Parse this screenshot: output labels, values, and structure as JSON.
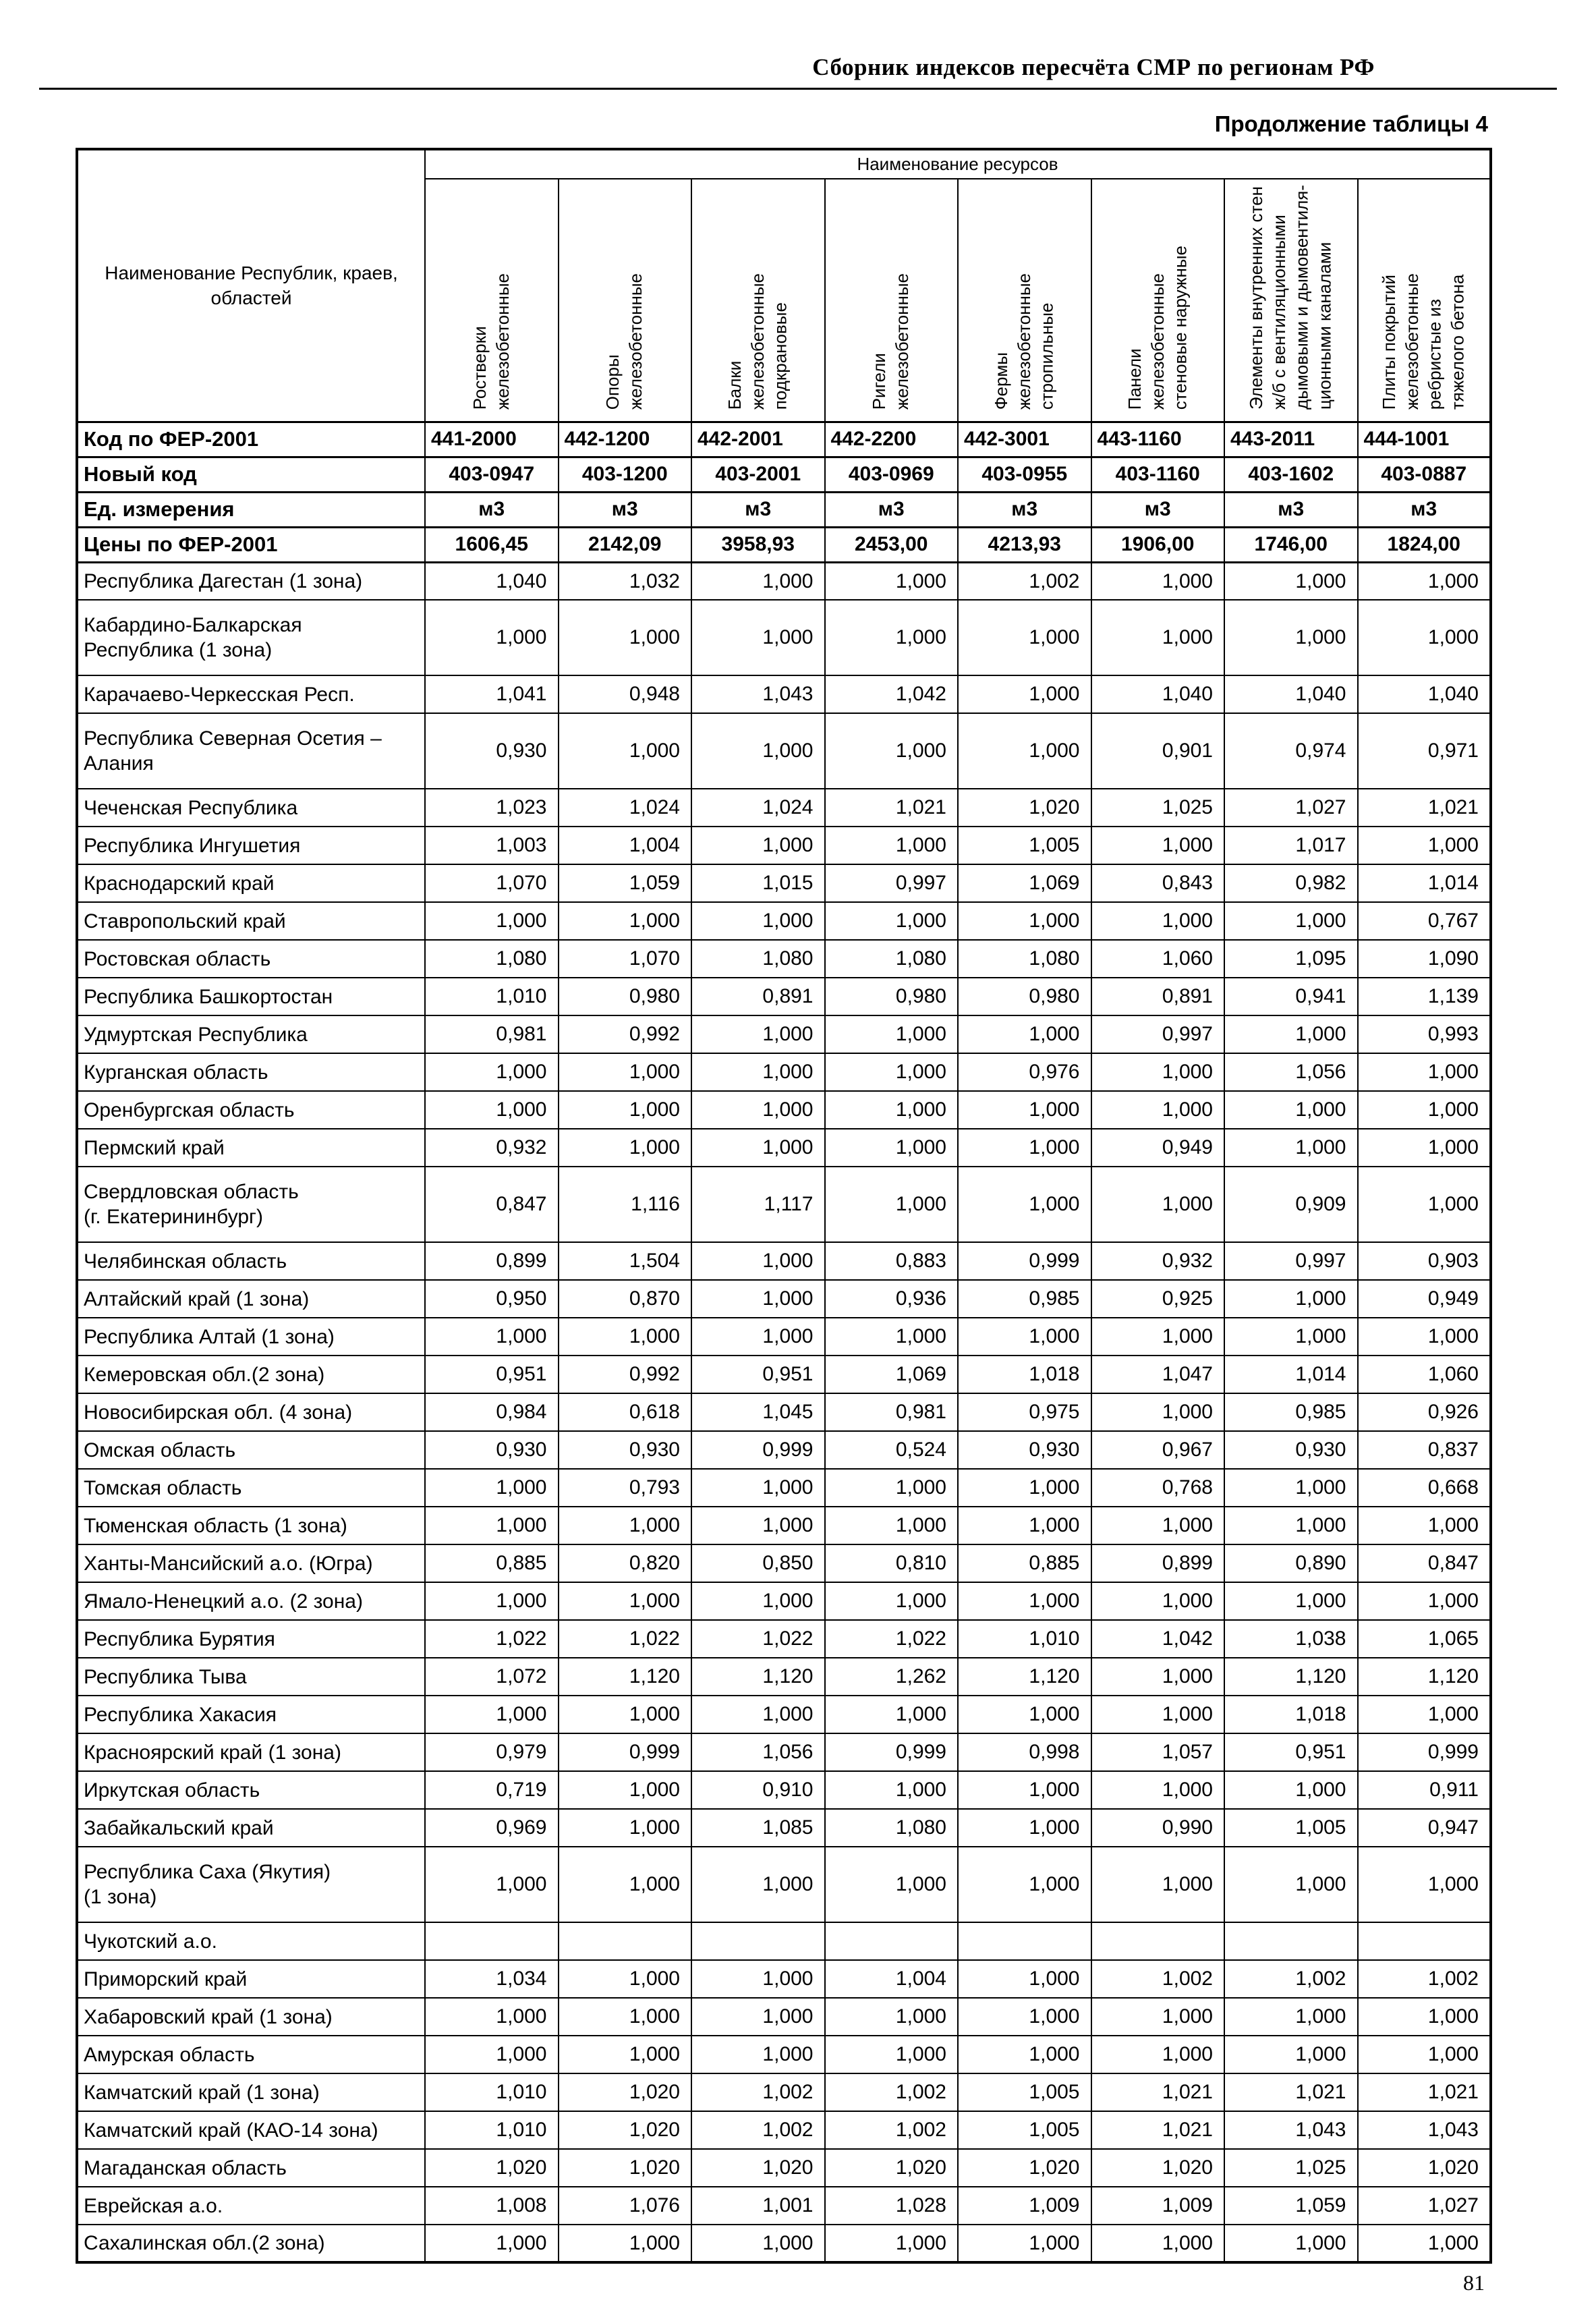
{
  "page": {
    "doc_header": "Сборник индексов пересчёта СМР по регионам РФ",
    "table_caption": "Продолжение таблицы 4",
    "page_number": "81",
    "colors": {
      "ink": "#000000",
      "paper": "#ffffff"
    }
  },
  "table": {
    "resources_header": "Наименование ресурсов",
    "first_column_header": "Наименование Республик, краев,\nобластей",
    "column_headers": [
      "Ростверки\nжелезобетонные",
      "Опоры\nжелезобетонные",
      "Балки\nжелезобетонные\nподкрановые",
      "Ригели\nжелезобетонные",
      "Фермы\nжелезобетонные\nстропильные",
      "Панели\nжелезобетонные\nстеновые наружные",
      "Элементы внутренних стен\nж/б с вентиляционными\nдымовыми и дымовентиля-\nционными каналами",
      "Плиты покрытий\nжелезобетонные\nребристые из\nтяжелого бетона"
    ],
    "meta_rows": [
      {
        "label": "Код по ФЕР-2001",
        "values": [
          "441-2000",
          "442-1200",
          "442-2001",
          "442-2200",
          "442-3001",
          "443-1160",
          "443-2011",
          "444-1001"
        ]
      },
      {
        "label": "Новый код",
        "values": [
          "403-0947",
          "403-1200",
          "403-2001",
          "403-0969",
          "403-0955",
          "403-1160",
          "403-1602",
          "403-0887"
        ]
      },
      {
        "label": "Ед. измерения",
        "values": [
          "м3",
          "м3",
          "м3",
          "м3",
          "м3",
          "м3",
          "м3",
          "м3"
        ]
      },
      {
        "label": "Цены по ФЕР-2001",
        "values": [
          "1606,45",
          "2142,09",
          "3958,93",
          "2453,00",
          "4213,93",
          "1906,00",
          "1746,00",
          "1824,00"
        ]
      }
    ],
    "rows": [
      {
        "label": "Республика Дагестан (1 зона)",
        "values": [
          "1,040",
          "1,032",
          "1,000",
          "1,000",
          "1,002",
          "1,000",
          "1,000",
          "1,000"
        ]
      },
      {
        "label": "Кабардино-Балкарская\nРеспублика (1 зона)",
        "values": [
          "1,000",
          "1,000",
          "1,000",
          "1,000",
          "1,000",
          "1,000",
          "1,000",
          "1,000"
        ]
      },
      {
        "label": "Карачаево-Черкесская Респ.",
        "values": [
          "1,041",
          "0,948",
          "1,043",
          "1,042",
          "1,000",
          "1,040",
          "1,040",
          "1,040"
        ]
      },
      {
        "label": "Республика Северная Осетия –\nАлания",
        "values": [
          "0,930",
          "1,000",
          "1,000",
          "1,000",
          "1,000",
          "0,901",
          "0,974",
          "0,971"
        ]
      },
      {
        "label": "Чеченская Республика",
        "values": [
          "1,023",
          "1,024",
          "1,024",
          "1,021",
          "1,020",
          "1,025",
          "1,027",
          "1,021"
        ]
      },
      {
        "label": "Республика Ингушетия",
        "values": [
          "1,003",
          "1,004",
          "1,000",
          "1,000",
          "1,005",
          "1,000",
          "1,017",
          "1,000"
        ]
      },
      {
        "label": "Краснодарский край",
        "values": [
          "1,070",
          "1,059",
          "1,015",
          "0,997",
          "1,069",
          "0,843",
          "0,982",
          "1,014"
        ]
      },
      {
        "label": "Ставропольский край",
        "values": [
          "1,000",
          "1,000",
          "1,000",
          "1,000",
          "1,000",
          "1,000",
          "1,000",
          "0,767"
        ]
      },
      {
        "label": "Ростовская область",
        "values": [
          "1,080",
          "1,070",
          "1,080",
          "1,080",
          "1,080",
          "1,060",
          "1,095",
          "1,090"
        ]
      },
      {
        "label": "Республика Башкортостан",
        "values": [
          "1,010",
          "0,980",
          "0,891",
          "0,980",
          "0,980",
          "0,891",
          "0,941",
          "1,139"
        ]
      },
      {
        "label": "Удмуртская Республика",
        "values": [
          "0,981",
          "0,992",
          "1,000",
          "1,000",
          "1,000",
          "0,997",
          "1,000",
          "0,993"
        ]
      },
      {
        "label": "Курганская область",
        "values": [
          "1,000",
          "1,000",
          "1,000",
          "1,000",
          "0,976",
          "1,000",
          "1,056",
          "1,000"
        ]
      },
      {
        "label": "Оренбургская область",
        "values": [
          "1,000",
          "1,000",
          "1,000",
          "1,000",
          "1,000",
          "1,000",
          "1,000",
          "1,000"
        ]
      },
      {
        "label": "Пермский край",
        "values": [
          "0,932",
          "1,000",
          "1,000",
          "1,000",
          "1,000",
          "0,949",
          "1,000",
          "1,000"
        ]
      },
      {
        "label": "Свердловская область\n(г. Екатерининбург)",
        "values": [
          "0,847",
          "1,116",
          "1,117",
          "1,000",
          "1,000",
          "1,000",
          "0,909",
          "1,000"
        ]
      },
      {
        "label": "Челябинская область",
        "values": [
          "0,899",
          "1,504",
          "1,000",
          "0,883",
          "0,999",
          "0,932",
          "0,997",
          "0,903"
        ]
      },
      {
        "label": "Алтайский край (1 зона)",
        "values": [
          "0,950",
          "0,870",
          "1,000",
          "0,936",
          "0,985",
          "0,925",
          "1,000",
          "0,949"
        ]
      },
      {
        "label": "Республика Алтай (1 зона)",
        "values": [
          "1,000",
          "1,000",
          "1,000",
          "1,000",
          "1,000",
          "1,000",
          "1,000",
          "1,000"
        ]
      },
      {
        "label": "Кемеровская обл.(2 зона)",
        "values": [
          "0,951",
          "0,992",
          "0,951",
          "1,069",
          "1,018",
          "1,047",
          "1,014",
          "1,060"
        ]
      },
      {
        "label": "Новосибирская обл. (4 зона)",
        "values": [
          "0,984",
          "0,618",
          "1,045",
          "0,981",
          "0,975",
          "1,000",
          "0,985",
          "0,926"
        ]
      },
      {
        "label": "Омская область",
        "values": [
          "0,930",
          "0,930",
          "0,999",
          "0,524",
          "0,930",
          "0,967",
          "0,930",
          "0,837"
        ]
      },
      {
        "label": "Томская область",
        "values": [
          "1,000",
          "0,793",
          "1,000",
          "1,000",
          "1,000",
          "0,768",
          "1,000",
          "0,668"
        ]
      },
      {
        "label": "Тюменская область (1 зона)",
        "values": [
          "1,000",
          "1,000",
          "1,000",
          "1,000",
          "1,000",
          "1,000",
          "1,000",
          "1,000"
        ]
      },
      {
        "label": "Ханты-Мансийский а.о. (Югра)",
        "values": [
          "0,885",
          "0,820",
          "0,850",
          "0,810",
          "0,885",
          "0,899",
          "0,890",
          "0,847"
        ]
      },
      {
        "label": "Ямало-Ненецкий а.о. (2 зона)",
        "values": [
          "1,000",
          "1,000",
          "1,000",
          "1,000",
          "1,000",
          "1,000",
          "1,000",
          "1,000"
        ]
      },
      {
        "label": "Республика Бурятия",
        "values": [
          "1,022",
          "1,022",
          "1,022",
          "1,022",
          "1,010",
          "1,042",
          "1,038",
          "1,065"
        ]
      },
      {
        "label": "Республика Тыва",
        "values": [
          "1,072",
          "1,120",
          "1,120",
          "1,262",
          "1,120",
          "1,000",
          "1,120",
          "1,120"
        ]
      },
      {
        "label": "Республика Хакасия",
        "values": [
          "1,000",
          "1,000",
          "1,000",
          "1,000",
          "1,000",
          "1,000",
          "1,018",
          "1,000"
        ]
      },
      {
        "label": "Красноярский край (1 зона)",
        "values": [
          "0,979",
          "0,999",
          "1,056",
          "0,999",
          "0,998",
          "1,057",
          "0,951",
          "0,999"
        ]
      },
      {
        "label": "Иркутская область",
        "values": [
          "0,719",
          "1,000",
          "0,910",
          "1,000",
          "1,000",
          "1,000",
          "1,000",
          "0,911"
        ]
      },
      {
        "label": "Забайкальский край",
        "values": [
          "0,969",
          "1,000",
          "1,085",
          "1,080",
          "1,000",
          "0,990",
          "1,005",
          "0,947"
        ]
      },
      {
        "label": "Республика Саха (Якутия)\n(1 зона)",
        "values": [
          "1,000",
          "1,000",
          "1,000",
          "1,000",
          "1,000",
          "1,000",
          "1,000",
          "1,000"
        ]
      },
      {
        "label": "Чукотский а.о.",
        "values": [
          "",
          "",
          "",
          "",
          "",
          "",
          "",
          ""
        ]
      },
      {
        "label": "Приморский край",
        "values": [
          "1,034",
          "1,000",
          "1,000",
          "1,004",
          "1,000",
          "1,002",
          "1,002",
          "1,002"
        ]
      },
      {
        "label": "Хабаровский край (1 зона)",
        "values": [
          "1,000",
          "1,000",
          "1,000",
          "1,000",
          "1,000",
          "1,000",
          "1,000",
          "1,000"
        ]
      },
      {
        "label": "Амурская область",
        "values": [
          "1,000",
          "1,000",
          "1,000",
          "1,000",
          "1,000",
          "1,000",
          "1,000",
          "1,000"
        ]
      },
      {
        "label": "Камчатский край (1 зона)",
        "values": [
          "1,010",
          "1,020",
          "1,002",
          "1,002",
          "1,005",
          "1,021",
          "1,021",
          "1,021"
        ]
      },
      {
        "label": "Камчатский край (КАО-14 зона)",
        "values": [
          "1,010",
          "1,020",
          "1,002",
          "1,002",
          "1,005",
          "1,021",
          "1,043",
          "1,043"
        ]
      },
      {
        "label": "Магаданская область",
        "values": [
          "1,020",
          "1,020",
          "1,020",
          "1,020",
          "1,020",
          "1,020",
          "1,025",
          "1,020"
        ]
      },
      {
        "label": "Еврейская а.о.",
        "values": [
          "1,008",
          "1,076",
          "1,001",
          "1,028",
          "1,009",
          "1,009",
          "1,059",
          "1,027"
        ]
      },
      {
        "label": "Сахалинская обл.(2 зона)",
        "values": [
          "1,000",
          "1,000",
          "1,000",
          "1,000",
          "1,000",
          "1,000",
          "1,000",
          "1,000"
        ]
      }
    ]
  }
}
